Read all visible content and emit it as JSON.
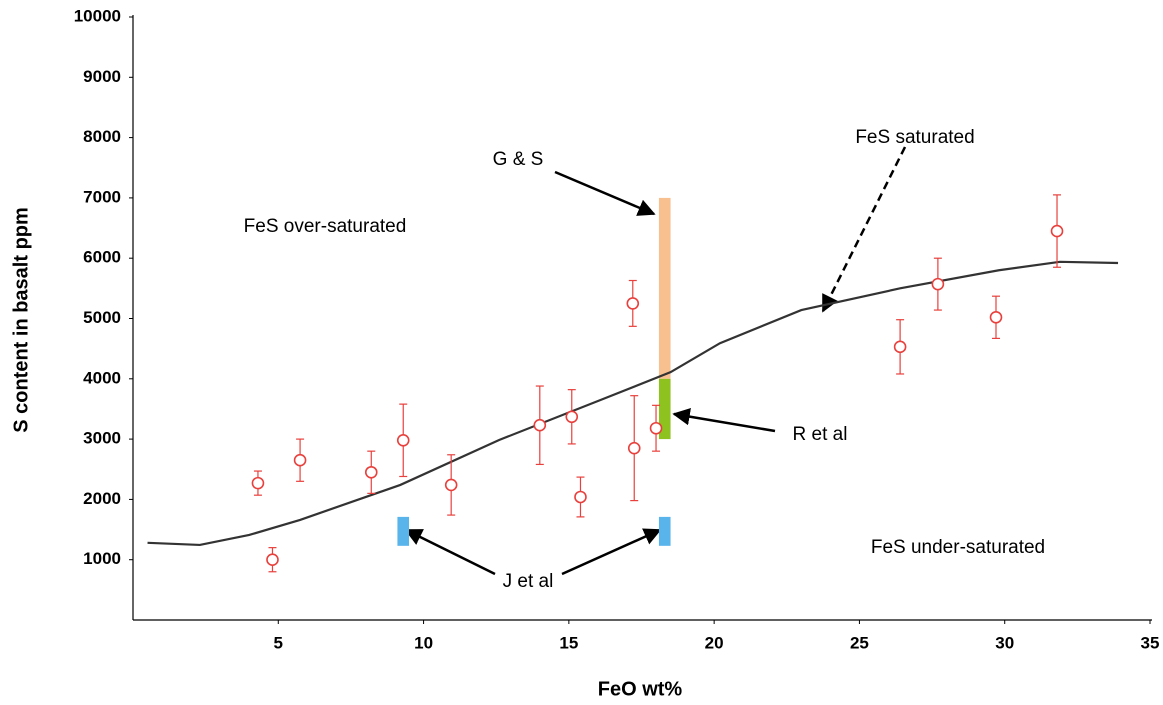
{
  "chart_data": {
    "type": "scatter",
    "xlabel": "FeO wt%",
    "ylabel": "S content in basalt ppm",
    "xlim": [
      0,
      35
    ],
    "ylim": [
      0,
      10000
    ],
    "xticks": [
      5,
      10,
      15,
      20,
      25,
      30,
      35
    ],
    "yticks": [
      1000,
      2000,
      3000,
      4000,
      5000,
      6000,
      7000,
      8000,
      9000,
      10000
    ],
    "series": [
      {
        "color": "#e8403c",
        "x": [
          4.3,
          4.8,
          5.75,
          8.2,
          9.3,
          10.95,
          14.0,
          15.1,
          15.4,
          17.2,
          17.25,
          18.0,
          26.4,
          27.7,
          29.7,
          31.8
        ],
        "values": [
          2270,
          1000,
          2650,
          2450,
          2980,
          2240,
          3230,
          3370,
          2040,
          5250,
          2850,
          3180,
          4530,
          5570,
          5020,
          6450
        ],
        "errors": [
          200,
          200,
          350,
          350,
          600,
          500,
          650,
          450,
          330,
          380,
          870,
          380,
          450,
          430,
          350,
          600
        ]
      }
    ],
    "curve": {
      "color": "#333333",
      "x": [
        0.5,
        2.3,
        4,
        5.75,
        9.2,
        12.6,
        16.1,
        18.5,
        20.2,
        23,
        26.4,
        29.8,
        31.9,
        33.9
      ],
      "values": [
        1280,
        1245,
        1410,
        1660,
        2240,
        2985,
        3650,
        4110,
        4590,
        5140,
        5500,
        5800,
        5940,
        5920
      ]
    },
    "bands": [
      {
        "color": "#f9c08f",
        "x": [
          18.1,
          18.5
        ],
        "y": [
          4000,
          7000
        ]
      },
      {
        "color": "#8dc21f",
        "x": [
          18.1,
          18.5
        ],
        "y": [
          3000,
          4000
        ]
      },
      {
        "color": "#5ab4ec",
        "x": [
          9.1,
          9.5
        ],
        "y": [
          1230,
          1710
        ]
      },
      {
        "color": "#5ab4ec",
        "x": [
          18.1,
          18.5
        ],
        "y": [
          1230,
          1710
        ]
      }
    ],
    "annotations": [
      "G & S",
      "FeS saturated",
      "FeS over-saturated",
      "R et al",
      "FeS under-saturated",
      "J et al"
    ]
  }
}
